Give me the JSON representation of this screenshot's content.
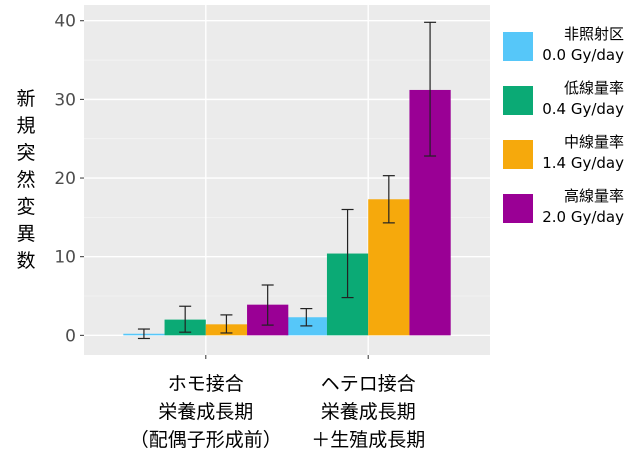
{
  "chart_data": {
    "type": "bar",
    "title": "",
    "xlabel": "",
    "ylabel": "新規突然変異数",
    "ylim": [
      -2.5,
      42
    ],
    "yticks": [
      0,
      10,
      20,
      30,
      40
    ],
    "grid": true,
    "legend_position": "right",
    "categories": [
      {
        "lines": [
          "ホモ接合",
          "栄養成長期",
          "（配偶子形成前）"
        ]
      },
      {
        "lines": [
          "ヘテロ接合",
          "栄養成長期",
          "＋生殖成長期"
        ]
      }
    ],
    "series": [
      {
        "name": "非照射区",
        "dose": "0.0 Gy/day",
        "color": "#56C7F9",
        "values": [
          0.2,
          2.3
        ],
        "err_low": [
          -0.4,
          1.2
        ],
        "err_high": [
          0.8,
          3.4
        ]
      },
      {
        "name": "低線量率",
        "dose": "0.4 Gy/day",
        "color": "#0BAA75",
        "values": [
          2.0,
          10.4
        ],
        "err_low": [
          0.4,
          4.8
        ],
        "err_high": [
          3.7,
          16.0
        ]
      },
      {
        "name": "中線量率",
        "dose": "1.4 Gy/day",
        "color": "#F6A90C",
        "values": [
          1.4,
          17.3
        ],
        "err_low": [
          0.3,
          14.3
        ],
        "err_high": [
          2.6,
          20.3
        ]
      },
      {
        "name": "高線量率",
        "dose": "2.0 Gy/day",
        "color": "#9A0095",
        "values": [
          3.9,
          31.2
        ],
        "err_low": [
          1.3,
          22.8
        ],
        "err_high": [
          6.4,
          39.8
        ]
      }
    ]
  }
}
